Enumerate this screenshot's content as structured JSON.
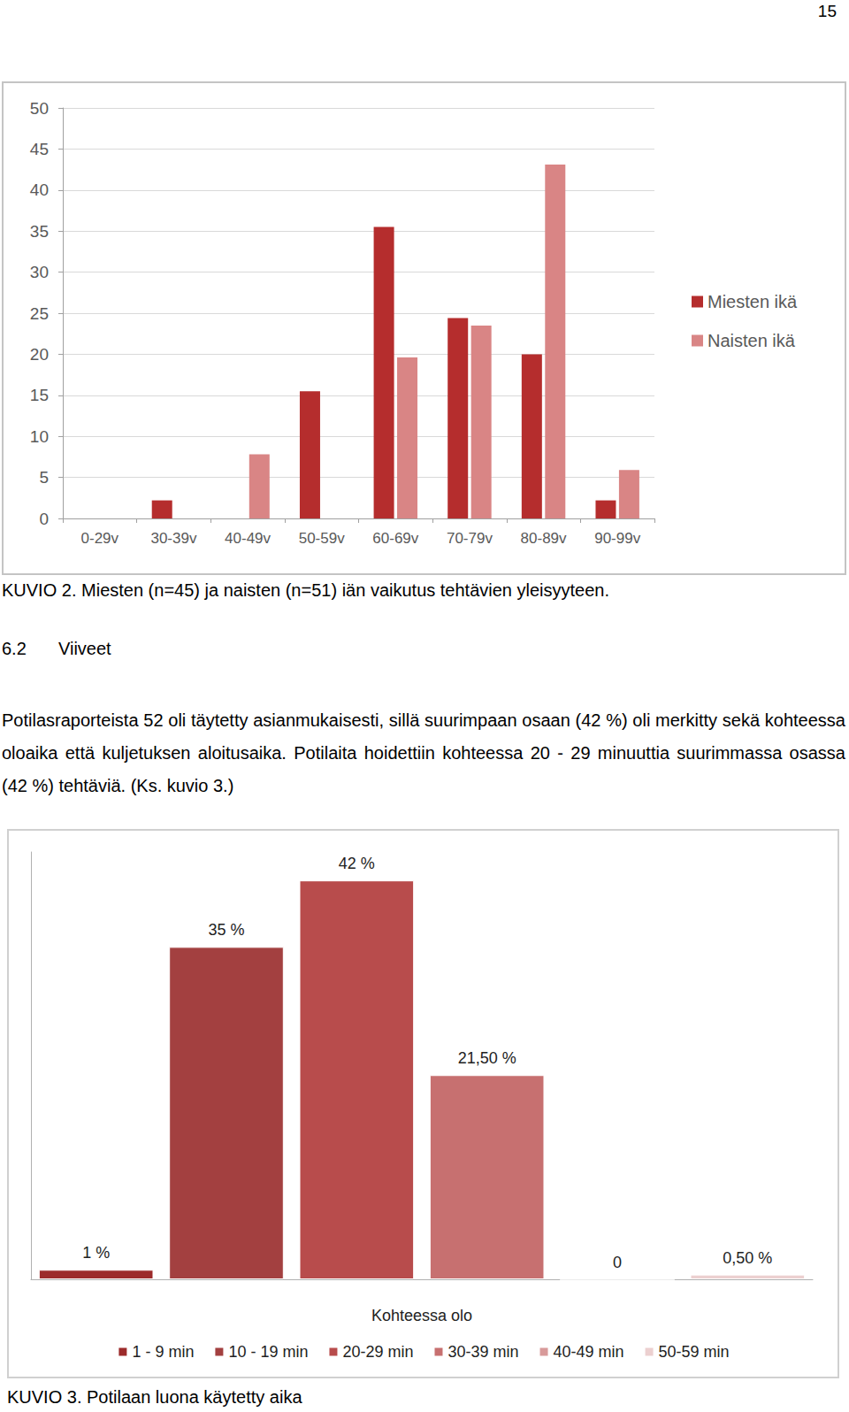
{
  "document": {
    "page_number": "15",
    "figure_captions": [
      "KUVIO 2. Miesten (n=45) ja naisten (n=51) iän vaikutus tehtävien yleisyyteen.",
      "KUVIO 3. Potilaan luona käytetty aika"
    ],
    "heading_number": "6.2",
    "heading_text": "Viiveet",
    "paragraph": "Potilasraporteista 52 oli täytetty asianmukaisesti, sillä suurimpaan osaan (42 %) oli merkitty sekä kohteessa oloaika että kuljetuksen aloitusaika. Potilaita hoidettiin kohteessa 20 - 29 minuuttia suurimmassa osassa (42 %) tehtäviä. (Ks. kuvio 3.)"
  },
  "chart_data": [
    {
      "type": "bar",
      "categories": [
        "0-29v",
        "30-39v",
        "40-49v",
        "50-59v",
        "60-69v",
        "70-79v",
        "80-89v",
        "90-99v"
      ],
      "series": [
        {
          "name": "Miesten ikä",
          "color": "#b52d2d",
          "values": [
            0,
            2.2,
            0,
            15.5,
            35.5,
            24.4,
            20,
            2.2
          ]
        },
        {
          "name": "Naisten ikä",
          "color": "#d98585",
          "values": [
            0,
            0,
            7.8,
            0,
            19.6,
            23.5,
            43.1,
            5.9
          ]
        }
      ],
      "ylim": [
        0,
        50
      ],
      "yticks": [
        0,
        5,
        10,
        15,
        20,
        25,
        30,
        35,
        40,
        45,
        50
      ],
      "grid": true,
      "legend": "right"
    },
    {
      "type": "bar",
      "categories": [
        "1 - 9 min",
        "10 - 19 min",
        "20-29 min",
        "30-39 min",
        "40-49 min",
        "50-59 min"
      ],
      "values": [
        1,
        35,
        42,
        21.5,
        0,
        0.5
      ],
      "value_labels": [
        "1 %",
        "35 %",
        "42 %",
        "21,50 %",
        "0",
        "0,50 %"
      ],
      "colors": [
        "#9c2b2b",
        "#a34040",
        "#b84c4c",
        "#c77070",
        "#d89a9a",
        "#ecd0d0"
      ],
      "xlabel": "Kohteessa olo",
      "ylim": [
        0,
        45
      ],
      "tick_labels": false,
      "data_labels": true,
      "grid": false,
      "legend": "bottom"
    }
  ]
}
